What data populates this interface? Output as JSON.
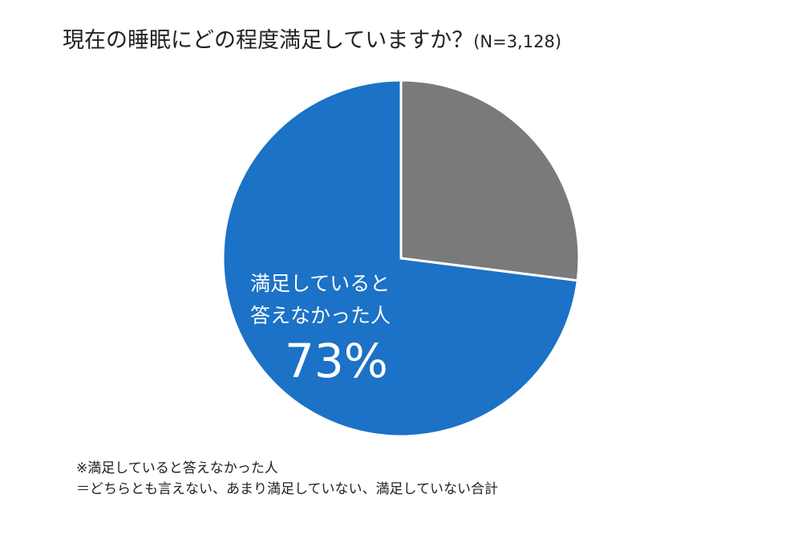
{
  "title": {
    "main": "現在の睡眠にどの程度満足していますか？",
    "sample": "(N=3,128)"
  },
  "chart_data": {
    "type": "pie",
    "slices": [
      {
        "label": "満足していると答えなかった人",
        "value": 73,
        "color": "#1b72c6"
      },
      {
        "label": "",
        "value": 27,
        "color": "#7a7a7a"
      }
    ],
    "slice_label": {
      "line1": "満足していると",
      "line2": "答えなかった人",
      "value": "73%"
    }
  },
  "notes": {
    "line1": "※満足していると答えなかった人",
    "line2": "＝どちらとも言えない、あまり満足していない、満足していない合計"
  }
}
